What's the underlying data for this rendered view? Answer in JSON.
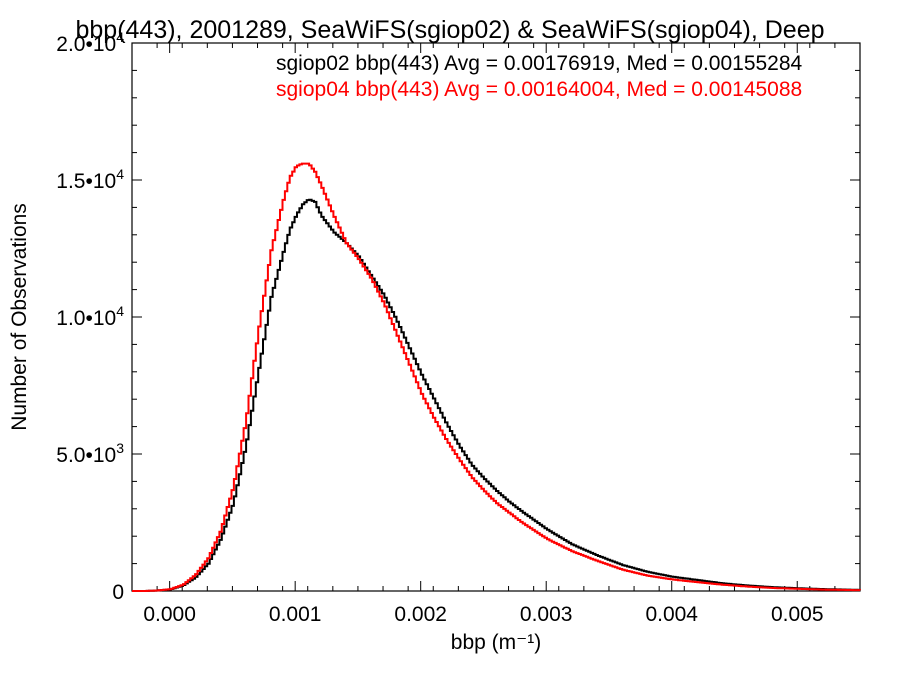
{
  "chart_data": {
    "type": "line",
    "title": "bbp(443), 2001289, SeaWiFS(sgiop02) & SeaWiFS(sgiop04), Deep",
    "xlabel": "bbp (m⁻¹)",
    "ylabel": "Number of Observations",
    "xlim": [
      -0.0003,
      0.0055
    ],
    "ylim": [
      0,
      20000
    ],
    "x_ticks": [
      "0.000",
      "0.001",
      "0.002",
      "0.003",
      "0.004",
      "0.005"
    ],
    "y_ticks": [
      {
        "value": 0,
        "mantissa": "0",
        "exponent": ""
      },
      {
        "value": 5000,
        "mantissa": "5.0•10",
        "exponent": "3"
      },
      {
        "value": 10000,
        "mantissa": "1.0•10",
        "exponent": "4"
      },
      {
        "value": 15000,
        "mantissa": "1.5•10",
        "exponent": "4"
      },
      {
        "value": 20000,
        "mantissa": "2.0•10",
        "exponent": "4"
      }
    ],
    "grid": false,
    "legend_position": "top-right",
    "legend": [
      {
        "text": "sgiop02 bbp(443) Avg = 0.00176919, Med = 0.00155284",
        "color": "#000000"
      },
      {
        "text": "sgiop04 bbp(443) Avg = 0.00164004, Med = 0.00145088",
        "color": "#ff0000"
      }
    ],
    "series": [
      {
        "color": "#000000",
        "x": [
          -0.0003,
          -0.0002,
          -0.0001,
          0.0,
          0.0001,
          0.0002,
          0.0003,
          0.0004,
          0.0005,
          0.0006,
          0.0007,
          0.0008,
          0.0009,
          0.00095,
          0.001,
          0.00105,
          0.0011,
          0.00115,
          0.0012,
          0.0013,
          0.0014,
          0.0015,
          0.0016,
          0.0017,
          0.0018,
          0.0019,
          0.002,
          0.0021,
          0.0022,
          0.0023,
          0.0024,
          0.0025,
          0.0026,
          0.0027,
          0.0028,
          0.003,
          0.0032,
          0.0034,
          0.0036,
          0.0038,
          0.004,
          0.0042,
          0.0044,
          0.0046,
          0.0048,
          0.005,
          0.0052,
          0.0055
        ],
        "y": [
          0,
          0,
          20,
          60,
          200,
          500,
          1000,
          1900,
          3200,
          5300,
          8000,
          10700,
          12400,
          13200,
          13700,
          14100,
          14300,
          14200,
          13700,
          13100,
          12700,
          12200,
          11500,
          10800,
          9900,
          8900,
          7900,
          7000,
          6100,
          5300,
          4600,
          4100,
          3650,
          3250,
          2900,
          2250,
          1700,
          1300,
          950,
          700,
          520,
          400,
          280,
          200,
          140,
          100,
          70,
          40
        ]
      },
      {
        "color": "#ff0000",
        "x": [
          -0.0003,
          -0.0002,
          -0.0001,
          0.0,
          0.0001,
          0.0002,
          0.0003,
          0.0004,
          0.0005,
          0.0006,
          0.0007,
          0.0008,
          0.0009,
          0.00095,
          0.001,
          0.00105,
          0.0011,
          0.00115,
          0.0012,
          0.0013,
          0.0014,
          0.0015,
          0.0016,
          0.0017,
          0.0018,
          0.0019,
          0.002,
          0.0021,
          0.0022,
          0.0023,
          0.0024,
          0.0025,
          0.0026,
          0.0027,
          0.0028,
          0.003,
          0.0032,
          0.0034,
          0.0036,
          0.0038,
          0.004,
          0.0042,
          0.0044,
          0.0046,
          0.0048,
          0.005,
          0.0052,
          0.0055
        ],
        "y": [
          0,
          0,
          20,
          70,
          230,
          600,
          1200,
          2200,
          3800,
          6200,
          9500,
          12400,
          14300,
          15100,
          15500,
          15600,
          15600,
          15300,
          14800,
          13700,
          12700,
          12100,
          11400,
          10500,
          9400,
          8300,
          7200,
          6300,
          5500,
          4800,
          4150,
          3650,
          3200,
          2850,
          2500,
          1900,
          1450,
          1100,
          780,
          560,
          420,
          320,
          230,
          160,
          110,
          80,
          50,
          30
        ]
      }
    ]
  }
}
